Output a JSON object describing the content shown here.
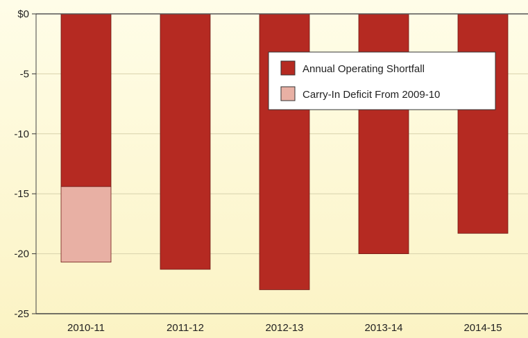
{
  "chart_data": {
    "type": "bar",
    "stacked": true,
    "categories": [
      "2010-11",
      "2011-12",
      "2012-13",
      "2013-14",
      "2014-15"
    ],
    "series": [
      {
        "name": "Annual Operating Shortfall",
        "color": "#b52a22",
        "values": [
          -14.4,
          -21.3,
          -23.0,
          -20.0,
          -18.3
        ]
      },
      {
        "name": "Carry-In Deficit From 2009-10",
        "color": "#e8b0a4",
        "values": [
          -6.3,
          0,
          0,
          0,
          0
        ]
      }
    ],
    "ylim": [
      -25,
      0
    ],
    "yticks": [
      0,
      -5,
      -10,
      -15,
      -20,
      -25
    ],
    "ytick_labels": [
      "$0",
      "-5",
      "-10",
      "-15",
      "-20",
      "-25"
    ],
    "grid": true,
    "legend_position": "top-right",
    "background_color": "#fffbe0",
    "title": "",
    "xlabel": "",
    "ylabel": ""
  }
}
